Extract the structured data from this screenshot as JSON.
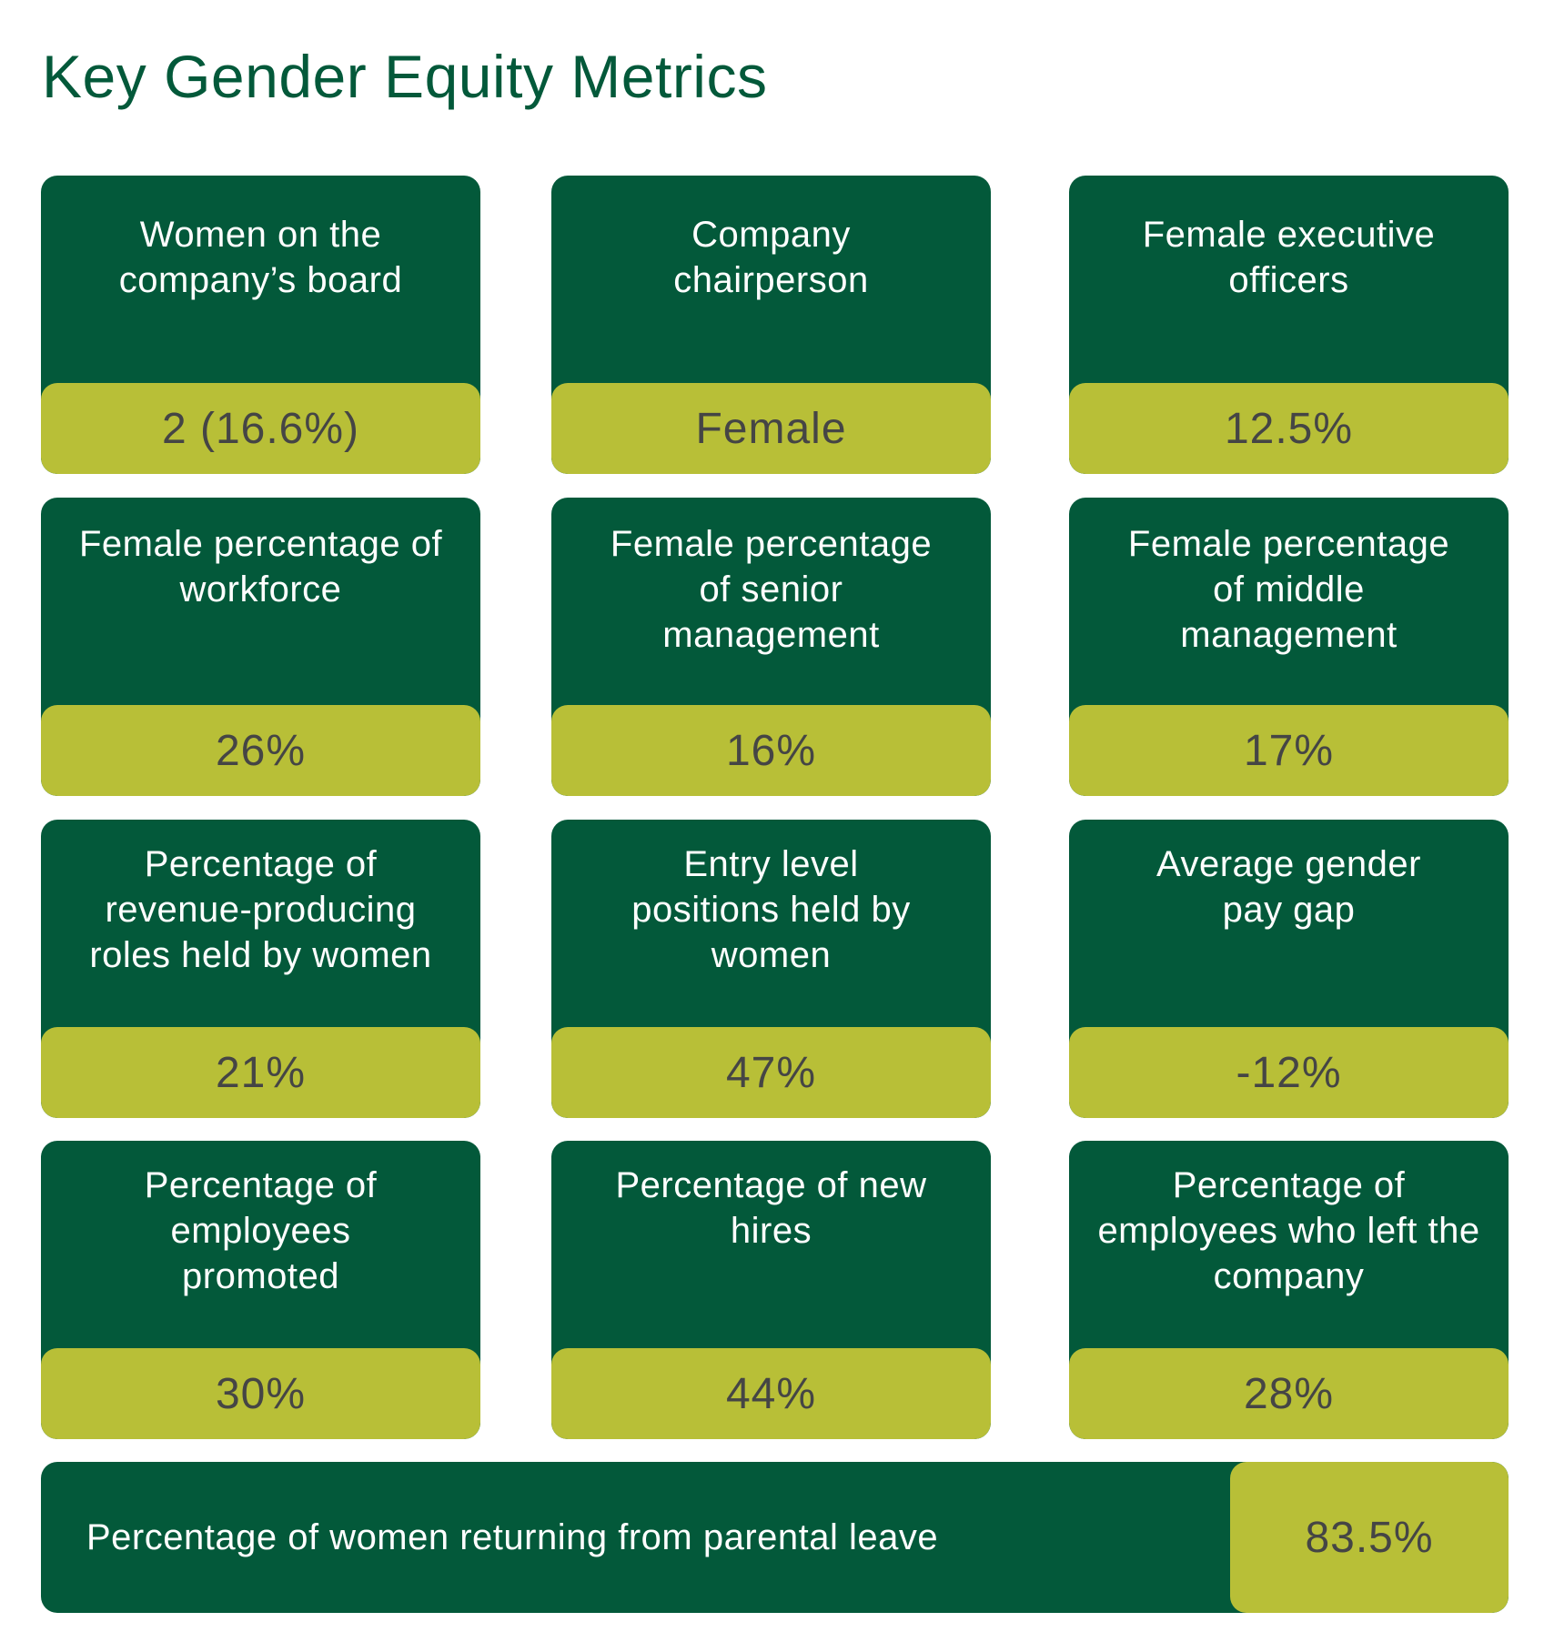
{
  "title": "Key Gender Equity Metrics",
  "colors": {
    "card_background": "#03593a",
    "value_background": "#b8bf37",
    "title_color": "#03593a",
    "value_text": "#454545"
  },
  "metrics": [
    {
      "label": "Women on the company’s board",
      "value": "2 (16.6%)"
    },
    {
      "label": "Company chairperson",
      "value": "Female"
    },
    {
      "label": "Female executive officers",
      "value": "12.5%"
    },
    {
      "label": "Female percentage of workforce",
      "value": "26%"
    },
    {
      "label": "Female percentage of senior management",
      "value": "16%"
    },
    {
      "label": "Female percentage of middle management",
      "value": "17%"
    },
    {
      "label": "Percentage of revenue-producing roles held by women",
      "value": "21%"
    },
    {
      "label": "Entry level positions held by women",
      "value": "47%"
    },
    {
      "label": "Average gender pay gap",
      "value": "-12%"
    },
    {
      "label": "Percentage of employees promoted",
      "value": "30%"
    },
    {
      "label": "Percentage of new hires",
      "value": "44%"
    },
    {
      "label": "Percentage of employees who left the company",
      "value": "28%"
    }
  ],
  "wide_metric": {
    "label": "Percentage of women returning from parental leave",
    "value": "83.5%"
  }
}
